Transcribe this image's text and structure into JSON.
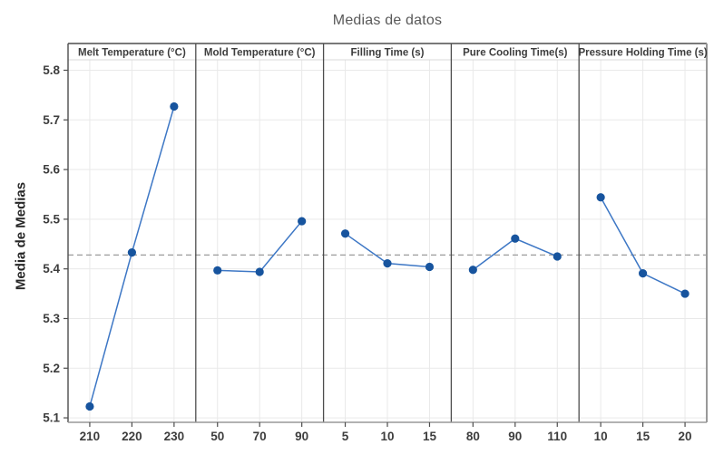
{
  "title": "Medias de datos",
  "ylabel": "Media de Medias",
  "colors": {
    "background": "#ffffff",
    "point": "#17549e",
    "line": "#3d77c5",
    "grid": "#e9e9e9",
    "reference_dash": "#9b9b9b",
    "panel_border_dark": "#4d4d4d",
    "panel_border_light": "#999999",
    "header_underline": "#d9d9d9",
    "tick_text": "#3d3d3d",
    "title_text": "#595959"
  },
  "chart_data": {
    "type": "line",
    "title": "Medias de datos",
    "ylabel": "Media de Medias",
    "xlabel": "",
    "grid": true,
    "legend": "none",
    "ylim": [
      5.091,
      5.821
    ],
    "yticks": [
      "5.1",
      "5.2",
      "5.3",
      "5.4",
      "5.5",
      "5.6",
      "5.7",
      "5.8"
    ],
    "reference_line_value": 5.428,
    "panels": [
      {
        "label": "Melt Temperature (°C)",
        "categories": [
          "210",
          "220",
          "230"
        ],
        "values": [
          5.123,
          5.433,
          5.727
        ]
      },
      {
        "label": "Mold Temperature (°C)",
        "categories": [
          "50",
          "70",
          "90"
        ],
        "values": [
          5.397,
          5.394,
          5.496
        ]
      },
      {
        "label": "Filling Time (s)",
        "categories": [
          "5",
          "10",
          "15"
        ],
        "values": [
          5.471,
          5.411,
          5.404
        ]
      },
      {
        "label": "Pure Cooling Time(s)",
        "categories": [
          "80",
          "90",
          "110"
        ],
        "values": [
          5.398,
          5.461,
          5.425
        ]
      },
      {
        "label": "Pressure Holding Time (s)",
        "categories": [
          "10",
          "15",
          "20"
        ],
        "values": [
          5.544,
          5.391,
          5.35
        ]
      }
    ]
  }
}
